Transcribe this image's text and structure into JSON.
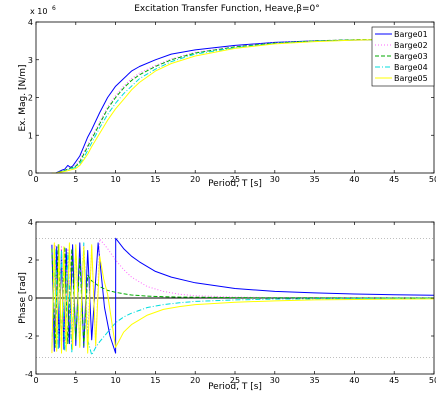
{
  "chart_data": [
    {
      "type": "line",
      "title": "Excitation Transfer Function, Heave,β=0°",
      "xlabel": "Period, T [s]",
      "ylabel": "Ex. Mag. [N/m]",
      "y_exponent_label": "x 10",
      "y_exponent": "6",
      "xlim": [
        0,
        50
      ],
      "ylim": [
        0,
        4
      ],
      "y_scale_factor": 1000000,
      "xticks": [
        0,
        5,
        10,
        15,
        20,
        25,
        30,
        35,
        40,
        45,
        50
      ],
      "yticks": [
        0,
        1,
        2,
        3,
        4
      ],
      "legend": "top-right",
      "grid": false,
      "series": [
        {
          "name": "Barge01",
          "color": "#0000ff",
          "style": "solid",
          "x": [
            2,
            2.5,
            3,
            3.3,
            3.6,
            4,
            4.3,
            4.6,
            5,
            5.5,
            6,
            6.5,
            7,
            8,
            9,
            10,
            11,
            12,
            13,
            15,
            17,
            20,
            25,
            30,
            35,
            40,
            45,
            50
          ],
          "y": [
            0,
            0,
            0.05,
            0.08,
            0.1,
            0.2,
            0.15,
            0.18,
            0.3,
            0.45,
            0.7,
            0.95,
            1.15,
            1.6,
            2.0,
            2.3,
            2.5,
            2.7,
            2.82,
            3.0,
            3.15,
            3.26,
            3.38,
            3.46,
            3.5,
            3.52,
            3.53,
            3.53
          ]
        },
        {
          "name": "Barge02",
          "color": "#ff66ff",
          "style": "dotted",
          "x": [
            2,
            2.5,
            3,
            3.5,
            4,
            4.5,
            5,
            5.5,
            6,
            6.5,
            7,
            8,
            9,
            10,
            11,
            12,
            13,
            15,
            17,
            20,
            25,
            30,
            35,
            40,
            45,
            50
          ],
          "y": [
            0,
            0,
            0.03,
            0.06,
            0.1,
            0.15,
            0.2,
            0.35,
            0.55,
            0.75,
            0.95,
            1.35,
            1.75,
            2.05,
            2.3,
            2.5,
            2.65,
            2.85,
            3.02,
            3.2,
            3.35,
            3.45,
            3.5,
            3.53,
            3.54,
            3.55
          ]
        },
        {
          "name": "Barge03",
          "color": "#00aa00",
          "style": "dashed",
          "x": [
            2,
            2.5,
            3,
            3.5,
            4,
            4.5,
            5,
            5.5,
            6,
            6.5,
            7,
            8,
            9,
            10,
            11,
            12,
            13,
            15,
            17,
            20,
            25,
            30,
            35,
            40,
            45,
            50
          ],
          "y": [
            0,
            0,
            0.03,
            0.06,
            0.1,
            0.14,
            0.18,
            0.3,
            0.5,
            0.7,
            0.9,
            1.3,
            1.7,
            2.0,
            2.25,
            2.45,
            2.6,
            2.82,
            3.0,
            3.18,
            3.34,
            3.44,
            3.5,
            3.53,
            3.54,
            3.55
          ]
        },
        {
          "name": "Barge04",
          "color": "#00dddd",
          "style": "dashdot",
          "x": [
            2,
            2.5,
            3,
            3.5,
            4,
            4.5,
            5,
            5.5,
            6,
            6.5,
            7,
            8,
            9,
            10,
            11,
            12,
            13,
            15,
            17,
            20,
            25,
            30,
            35,
            40,
            45,
            50
          ],
          "y": [
            0,
            0,
            0.02,
            0.05,
            0.08,
            0.12,
            0.15,
            0.25,
            0.4,
            0.6,
            0.8,
            1.2,
            1.55,
            1.85,
            2.1,
            2.3,
            2.5,
            2.75,
            2.95,
            3.15,
            3.32,
            3.43,
            3.49,
            3.52,
            3.54,
            3.55
          ]
        },
        {
          "name": "Barge05",
          "color": "#ffff00",
          "style": "solid",
          "x": [
            2,
            2.5,
            3,
            3.5,
            4,
            4.5,
            5,
            5.5,
            6,
            6.5,
            7,
            8,
            9,
            10,
            11,
            12,
            13,
            15,
            17,
            20,
            25,
            30,
            35,
            40,
            45,
            50
          ],
          "y": [
            0,
            0,
            0.02,
            0.04,
            0.06,
            0.09,
            0.12,
            0.2,
            0.35,
            0.5,
            0.7,
            1.05,
            1.4,
            1.7,
            1.95,
            2.2,
            2.4,
            2.7,
            2.9,
            3.1,
            3.3,
            3.42,
            3.48,
            3.52,
            3.54,
            3.55
          ]
        }
      ]
    },
    {
      "type": "line",
      "xlabel": "Period, T [s]",
      "ylabel": "Phase [rad]",
      "xlim": [
        0,
        50
      ],
      "ylim": [
        -4,
        4
      ],
      "xticks": [
        0,
        5,
        10,
        15,
        20,
        25,
        30,
        35,
        40,
        45,
        50
      ],
      "yticks": [
        -4,
        -2,
        0,
        2,
        4
      ],
      "grid": false,
      "series": [
        {
          "name": "Barge01",
          "color": "#0000ff",
          "style": "solid",
          "x": [
            2,
            2.3,
            2.6,
            2.9,
            3.2,
            3.5,
            3.8,
            4.2,
            4.6,
            5.0,
            5.5,
            6.0,
            6.5,
            7.0,
            7.8,
            8.6,
            9.3,
            10,
            10.01,
            11,
            12,
            13,
            15,
            17,
            20,
            25,
            30,
            35,
            40,
            45,
            50
          ],
          "y": [
            2.8,
            -2.8,
            2.7,
            -2.6,
            2.5,
            -2.7,
            2.6,
            -2.4,
            2.8,
            -2.5,
            2.9,
            -2.6,
            2.5,
            -2.2,
            2.9,
            -0.5,
            -2.0,
            -2.9,
            3.14,
            2.6,
            2.2,
            1.9,
            1.4,
            1.1,
            0.8,
            0.5,
            0.35,
            0.27,
            0.21,
            0.17,
            0.14
          ]
        },
        {
          "name": "Barge02",
          "color": "#ff66ff",
          "style": "dotted",
          "x": [
            2,
            2.4,
            2.8,
            3.2,
            3.6,
            4.0,
            4.5,
            5.0,
            5.5,
            6.0,
            6.5,
            7.0,
            7.5,
            8.0,
            9.0,
            10.0,
            11.0,
            12.0,
            14.0,
            16.0,
            18.0,
            20.0,
            25.0,
            30.0,
            35.0,
            40.0,
            45.0,
            50.0
          ],
          "y": [
            -2.8,
            2.8,
            -2.6,
            2.7,
            -2.5,
            2.6,
            -2.7,
            2.5,
            -2.3,
            2.8,
            -2.0,
            2.7,
            -2.6,
            3.1,
            2.6,
            2.0,
            1.5,
            1.1,
            0.6,
            0.35,
            0.2,
            0.12,
            0.05,
            0.02,
            0.01,
            0.01,
            0.0,
            0.0
          ]
        },
        {
          "name": "Barge03",
          "color": "#00aa00",
          "style": "dashed",
          "x": [
            2,
            2.4,
            2.8,
            3.2,
            3.6,
            4.0,
            4.5,
            5.0,
            5.5,
            6.0,
            6.5,
            7.0,
            8.0,
            9.0,
            10.0,
            11.0,
            12.0,
            14.0,
            16.0,
            18.0,
            20.0,
            25.0,
            30.0,
            35.0,
            40.0,
            45.0,
            50.0
          ],
          "y": [
            2.6,
            -2.6,
            2.8,
            -2.5,
            2.7,
            -2.4,
            2.6,
            -2.2,
            2.1,
            -2.5,
            1.2,
            0.9,
            0.6,
            0.4,
            0.3,
            0.22,
            0.16,
            0.1,
            0.07,
            0.05,
            0.04,
            0.02,
            0.01,
            0.01,
            0.0,
            0.0,
            0.0
          ]
        },
        {
          "name": "Barge04",
          "color": "#00dddd",
          "style": "dashdot",
          "x": [
            2,
            2.4,
            2.8,
            3.2,
            3.6,
            4.0,
            4.5,
            5.0,
            5.5,
            6.0,
            6.5,
            7.0,
            7.5,
            8.0,
            9.0,
            10.0,
            11.0,
            12.0,
            14.0,
            16.0,
            18.0,
            20.0,
            25.0,
            30.0,
            35.0,
            40.0,
            45.0,
            50.0
          ],
          "y": [
            -2.6,
            2.6,
            -2.7,
            2.5,
            -2.8,
            2.4,
            -2.9,
            2.6,
            -2.5,
            2.9,
            -2.2,
            -3.0,
            -2.6,
            -2.3,
            -1.8,
            -1.3,
            -1.0,
            -0.8,
            -0.5,
            -0.35,
            -0.25,
            -0.18,
            -0.1,
            -0.06,
            -0.04,
            -0.03,
            -0.02,
            -0.02
          ]
        },
        {
          "name": "Barge05",
          "color": "#ffff00",
          "style": "solid",
          "x": [
            2,
            2.3,
            2.6,
            2.9,
            3.2,
            3.5,
            3.8,
            4.2,
            4.6,
            5.0,
            5.5,
            6.0,
            6.5,
            7.0,
            7.5,
            8.0,
            8.5,
            9.0,
            9.5,
            10.0,
            10.5,
            11.0,
            12.0,
            14.0,
            16.0,
            18.0,
            20.0,
            25.0,
            30.0,
            35.0,
            40.0,
            45.0,
            50.0
          ],
          "y": [
            -2.9,
            2.9,
            -2.8,
            2.8,
            -2.9,
            2.7,
            -2.8,
            2.9,
            -2.7,
            2.8,
            -2.6,
            2.7,
            -2.9,
            2.8,
            -2.5,
            2.2,
            1.0,
            0.2,
            -1.2,
            -2.6,
            -2.2,
            -1.8,
            -1.4,
            -0.9,
            -0.6,
            -0.45,
            -0.35,
            -0.22,
            -0.15,
            -0.1,
            -0.08,
            -0.06,
            -0.05
          ]
        }
      ]
    }
  ]
}
